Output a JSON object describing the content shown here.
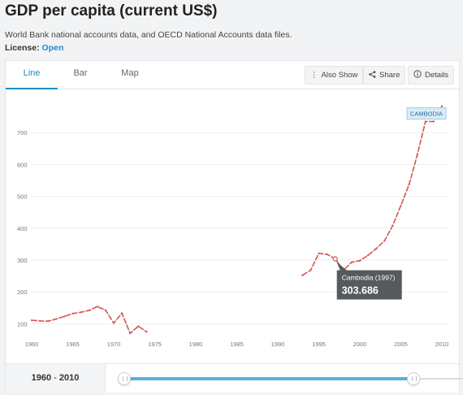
{
  "header": {
    "title": "GDP per capita (current US$)",
    "source": "World Bank national accounts data, and OECD National Accounts data files.",
    "license_label": "License:",
    "license_value": "Open"
  },
  "tabs": [
    {
      "label": "Line",
      "active": true
    },
    {
      "label": "Bar",
      "active": false
    },
    {
      "label": "Map",
      "active": false
    }
  ],
  "actions": {
    "also_show": "Also Show",
    "share": "Share",
    "details": "Details"
  },
  "range": {
    "start": "1960",
    "sep": " - ",
    "end": "2010",
    "low_fraction": 0.0,
    "high_fraction": 1.0
  },
  "colors": {
    "line": "#d9534f",
    "accent": "#1a8fc9",
    "tooltip_bg": "#555a5f"
  },
  "chart_data": {
    "type": "line",
    "xlim": [
      1960,
      2010
    ],
    "ylim": [
      60,
      800
    ],
    "x_ticks": [
      "1960",
      "1965",
      "1970",
      "1975",
      "1980",
      "1985",
      "1990",
      "1995",
      "2000",
      "2005",
      "2010"
    ],
    "y_ticks": [
      "100",
      "200",
      "300",
      "400",
      "500",
      "600",
      "700"
    ],
    "series": [
      {
        "name": "CAMBODIA",
        "segments": [
          [
            {
              "x": 1960,
              "y": 111
            },
            {
              "x": 1961,
              "y": 109
            },
            {
              "x": 1962,
              "y": 108
            },
            {
              "x": 1963,
              "y": 115
            },
            {
              "x": 1964,
              "y": 123
            },
            {
              "x": 1965,
              "y": 132
            },
            {
              "x": 1966,
              "y": 136
            },
            {
              "x": 1967,
              "y": 142
            },
            {
              "x": 1968,
              "y": 154
            },
            {
              "x": 1969,
              "y": 143
            },
            {
              "x": 1970,
              "y": 102
            },
            {
              "x": 1971,
              "y": 133
            },
            {
              "x": 1972,
              "y": 70
            },
            {
              "x": 1973,
              "y": 92
            },
            {
              "x": 1974,
              "y": 75
            }
          ],
          [
            {
              "x": 1993,
              "y": 252
            },
            {
              "x": 1994,
              "y": 268
            },
            {
              "x": 1995,
              "y": 321
            },
            {
              "x": 1996,
              "y": 318
            },
            {
              "x": 1997,
              "y": 303.686
            },
            {
              "x": 1998,
              "y": 268
            },
            {
              "x": 1999,
              "y": 293
            },
            {
              "x": 2000,
              "y": 298
            },
            {
              "x": 2001,
              "y": 315
            },
            {
              "x": 2002,
              "y": 336
            },
            {
              "x": 2003,
              "y": 360
            },
            {
              "x": 2004,
              "y": 408
            },
            {
              "x": 2005,
              "y": 471
            },
            {
              "x": 2006,
              "y": 537
            },
            {
              "x": 2007,
              "y": 630
            },
            {
              "x": 2008,
              "y": 735
            },
            {
              "x": 2009,
              "y": 735
            },
            {
              "x": 2010,
              "y": 783
            }
          ]
        ]
      }
    ],
    "series_label": "CAMBODIA",
    "tooltip": {
      "title": "Cambodia (1997)",
      "value": "303.686",
      "x": 1997,
      "y": 303.686
    }
  }
}
